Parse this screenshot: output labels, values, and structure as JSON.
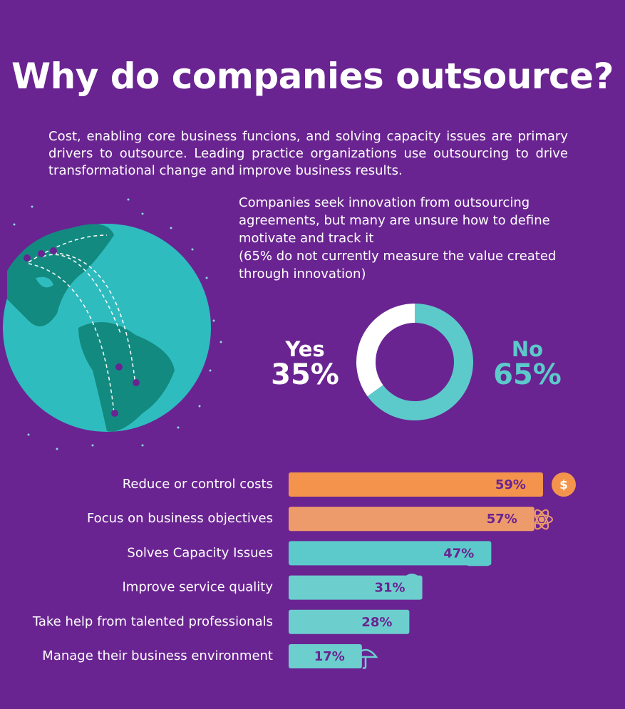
{
  "title": "Why do companies outsource?",
  "intro": "Cost, enabling core business funcions, and solving capacity issues are primary drivers to outsource. Leading practice organizations use outsourcing to drive transformational change and improve business results.",
  "note": "Companies seek innovation from outsourcing agreements, but many are unsure how to define motivate and track it",
  "note_detail": "(65% do not currently measure the value created through innovation)",
  "chart_data": [
    {
      "type": "donut",
      "categories": [
        "Yes",
        "No"
      ],
      "values": [
        35,
        65
      ],
      "value_labels": [
        "35%",
        "65%"
      ],
      "colors": [
        "#ffffff",
        "#5ccaca"
      ]
    },
    {
      "type": "bar",
      "categories": [
        "Reduce or control costs",
        "Focus on business objectives",
        "Solves Capacity Issues",
        "Improve service quality",
        "Take help from talented professionals",
        "Manage their business environment"
      ],
      "values": [
        59,
        57,
        47,
        31,
        28,
        17
      ],
      "value_labels": [
        "59%",
        "57%",
        "47%",
        "31%",
        "28%",
        "17%"
      ],
      "colors": [
        "#f4944c",
        "#ee9b6c",
        "#5ccaca",
        "#6dcece",
        "#6dcece",
        "#6dcece"
      ]
    }
  ]
}
